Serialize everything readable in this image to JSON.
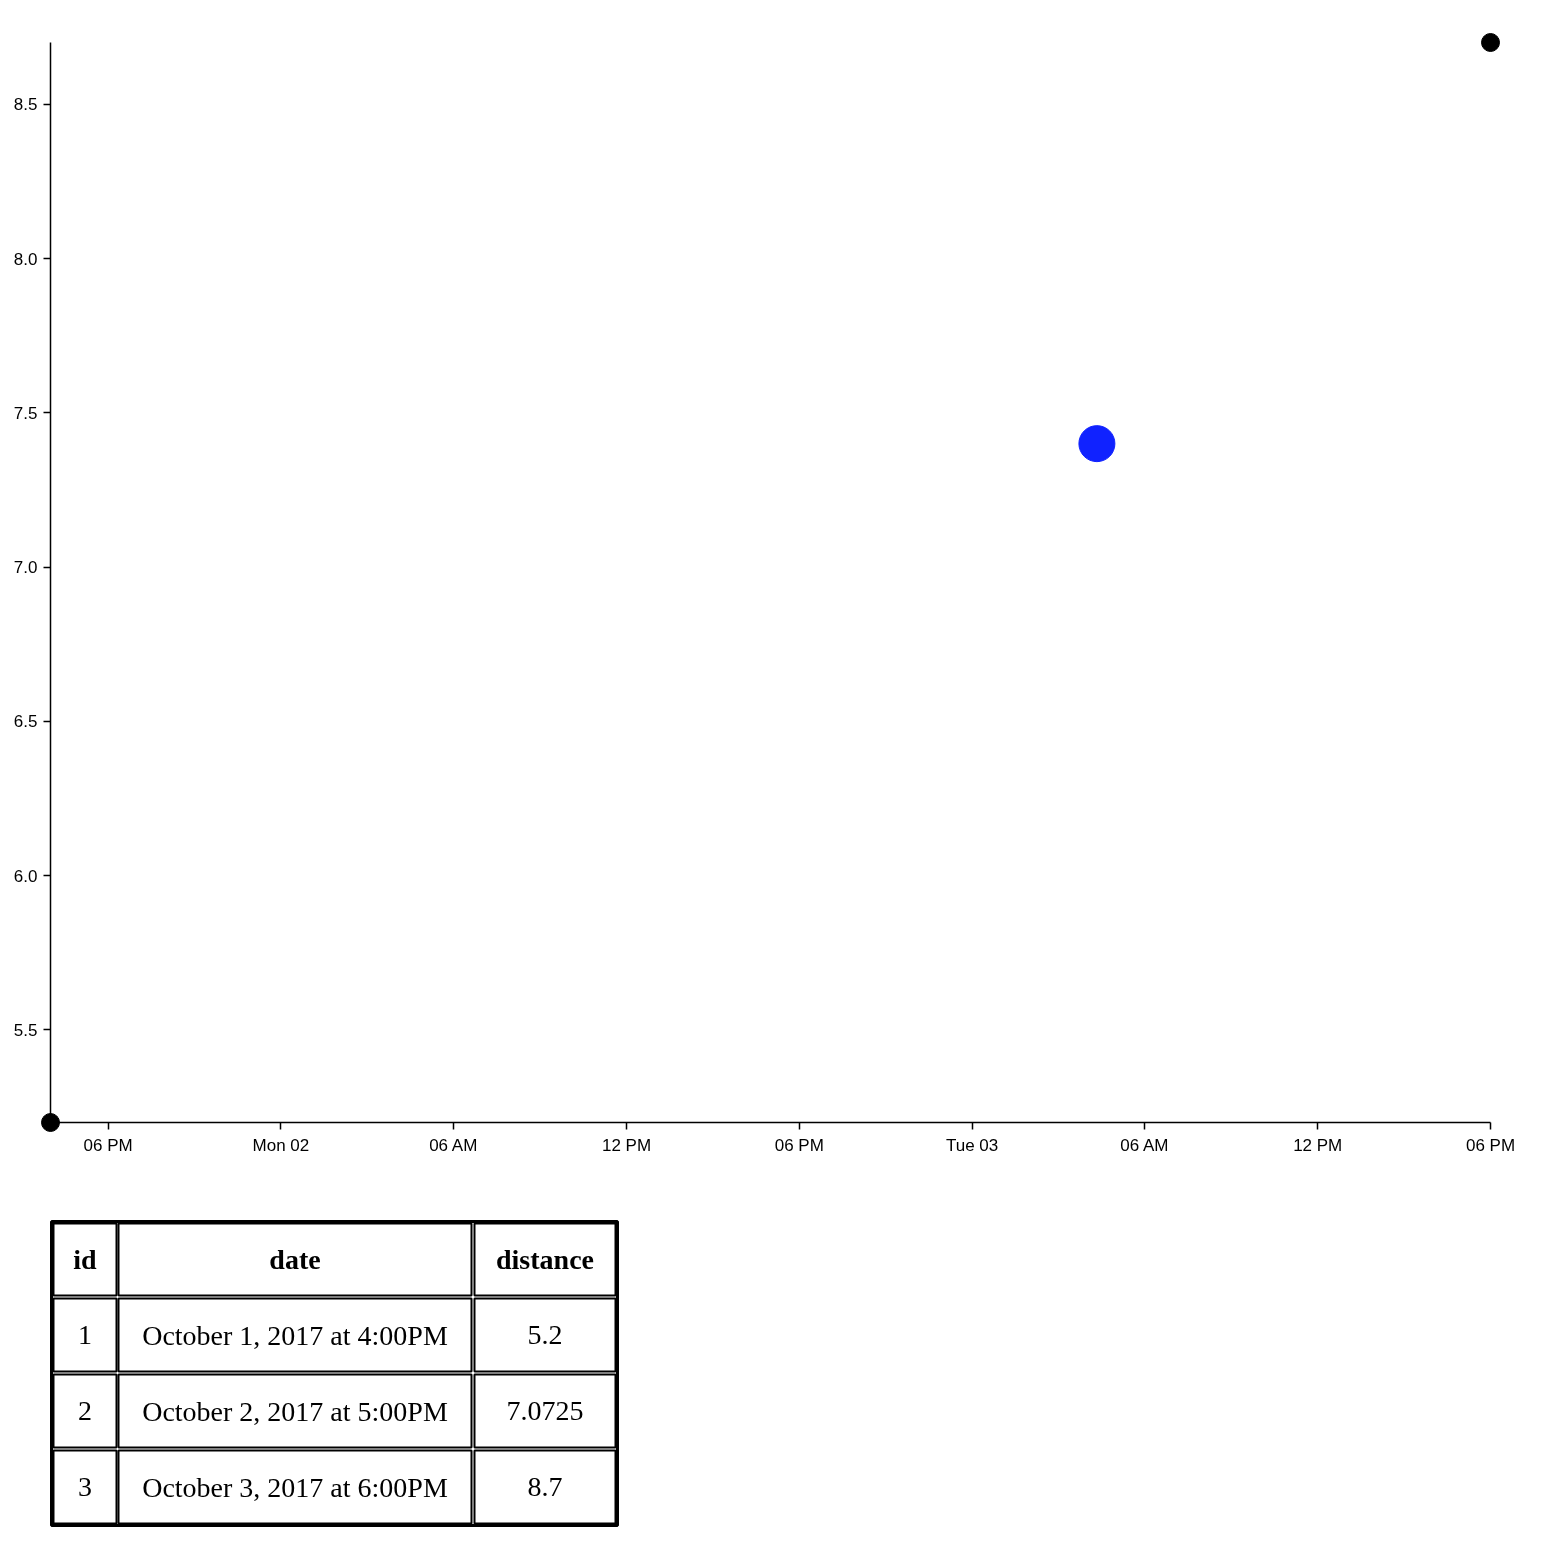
{
  "chart_data": [
    {
      "type": "scatter",
      "marker": "circle",
      "series": [
        {
          "color": "#000000",
          "x": [
            "2017-10-01T16:00",
            "2017-10-03T18:00"
          ],
          "values": [
            5.2,
            8.7
          ]
        },
        {
          "color": "#1022ff",
          "x": [
            "2017-10-03T04:20"
          ],
          "values": [
            7.4
          ]
        }
      ],
      "xlim": [
        "2017-10-01T16:00",
        "2017-10-03T18:00"
      ],
      "xticks": [
        {
          "value": "2017-10-01T18:00",
          "label": "06 PM"
        },
        {
          "value": "2017-10-02T00:00",
          "label": "Mon 02"
        },
        {
          "value": "2017-10-02T06:00",
          "label": "06 AM"
        },
        {
          "value": "2017-10-02T12:00",
          "label": "12 PM"
        },
        {
          "value": "2017-10-02T18:00",
          "label": "06 PM"
        },
        {
          "value": "2017-10-03T00:00",
          "label": "Tue 03"
        },
        {
          "value": "2017-10-03T06:00",
          "label": "06 AM"
        },
        {
          "value": "2017-10-03T12:00",
          "label": "12 PM"
        },
        {
          "value": "2017-10-03T18:00",
          "label": "06 PM"
        }
      ],
      "ylim": [
        5.2,
        8.7
      ],
      "yticks": [
        5.5,
        {
          "value": 6,
          "label": "6.0"
        },
        6.5,
        {
          "value": 7,
          "label": "7.0"
        },
        7.5,
        {
          "value": 8,
          "label": "8.0"
        },
        8.5
      ]
    },
    {
      "type": "other",
      "annotations": [
        "id",
        "date",
        "distance",
        "1",
        "October 1, 2017 at 4:00PM",
        "5.2",
        "2",
        "October 2, 2017 at 5:00PM",
        "7.0725",
        "3",
        "October 3, 2017 at 6:00PM",
        "8.7"
      ]
    }
  ]
}
